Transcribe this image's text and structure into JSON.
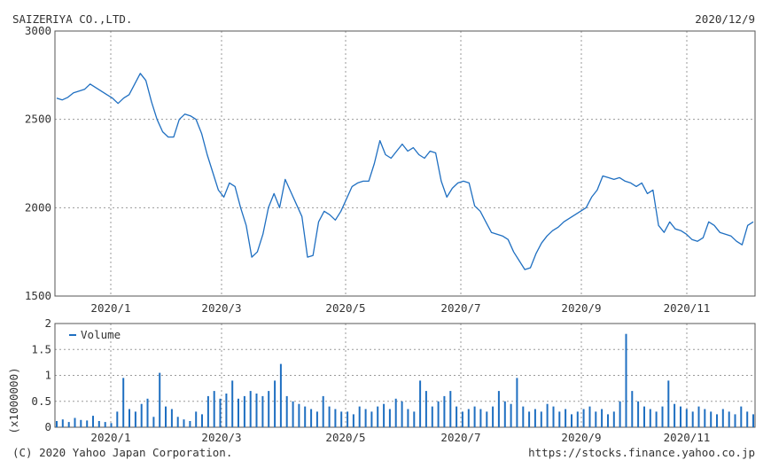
{
  "header": {
    "company": "SAIZERIYA CO.,LTD.",
    "date": "2020/12/9"
  },
  "footer": {
    "copyright": "(C) 2020 Yahoo Japan Corporation.",
    "url": "https://stocks.finance.yahoo.co.jp"
  },
  "colors": {
    "line": "#1f6fc1",
    "grid": "#9a9a9a",
    "frame": "#555555",
    "text": "#333333"
  },
  "chart_data": [
    {
      "type": "line",
      "title": "",
      "x_tick_labels": [
        "2020/1",
        "2020/3",
        "2020/5",
        "2020/7",
        "2020/9",
        "2020/11"
      ],
      "y_tick_labels": [
        "3000",
        "2500",
        "2000",
        "1500"
      ],
      "ylim": [
        1500,
        3000
      ],
      "grid": true,
      "series": [
        {
          "values": [
            2620,
            2610,
            2625,
            2650,
            2660,
            2670,
            2700,
            2680,
            2660,
            2640,
            2620,
            2590,
            2620,
            2640,
            2700,
            2760,
            2720,
            2600,
            2500,
            2430,
            2400,
            2400,
            2500,
            2530,
            2520,
            2500,
            2420,
            2300,
            2200,
            2100,
            2060,
            2140,
            2120,
            2000,
            1900,
            1720,
            1750,
            1850,
            2000,
            2080,
            2000,
            2160,
            2090,
            2020,
            1950,
            1720,
            1730,
            1920,
            1980,
            1960,
            1930,
            1980,
            2050,
            2120,
            2140,
            2150,
            2150,
            2250,
            2380,
            2300,
            2280,
            2320,
            2360,
            2320,
            2340,
            2300,
            2280,
            2320,
            2310,
            2150,
            2060,
            2110,
            2140,
            2150,
            2140,
            2010,
            1980,
            1920,
            1860,
            1850,
            1840,
            1820,
            1750,
            1700,
            1650,
            1660,
            1740,
            1800,
            1840,
            1870,
            1890,
            1920,
            1940,
            1960,
            1980,
            2000,
            2060,
            2100,
            2180,
            2170,
            2160,
            2170,
            2150,
            2140,
            2120,
            2140,
            2080,
            2100,
            1900,
            1860,
            1920,
            1880,
            1870,
            1850,
            1820,
            1810,
            1830,
            1920,
            1900,
            1860,
            1850,
            1840,
            1810,
            1790,
            1900,
            1920
          ],
          "start": "2019-12-02",
          "end": "2020-12-09"
        }
      ]
    },
    {
      "type": "bar",
      "legend": [
        "Volume"
      ],
      "legend_position": "top-left",
      "ylabel": "(x1000000)",
      "y_tick_labels": [
        "2",
        "1.5",
        "1",
        "0.5",
        "0"
      ],
      "ylim": [
        0,
        2
      ],
      "grid": true,
      "series": [
        {
          "name": "Volume",
          "values": [
            0.12,
            0.15,
            0.1,
            0.18,
            0.14,
            0.13,
            0.22,
            0.12,
            0.1,
            0.08,
            0.3,
            0.95,
            0.35,
            0.3,
            0.45,
            0.55,
            0.2,
            1.05,
            0.4,
            0.35,
            0.2,
            0.15,
            0.12,
            0.3,
            0.25,
            0.6,
            0.7,
            0.55,
            0.65,
            0.9,
            0.55,
            0.6,
            0.7,
            0.65,
            0.6,
            0.7,
            0.9,
            1.22,
            0.6,
            0.5,
            0.45,
            0.4,
            0.35,
            0.3,
            0.6,
            0.4,
            0.35,
            0.3,
            0.3,
            0.25,
            0.4,
            0.35,
            0.3,
            0.4,
            0.45,
            0.35,
            0.55,
            0.5,
            0.35,
            0.3,
            0.9,
            0.7,
            0.4,
            0.5,
            0.6,
            0.7,
            0.4,
            0.3,
            0.35,
            0.4,
            0.35,
            0.3,
            0.4,
            0.7,
            0.5,
            0.45,
            0.95,
            0.4,
            0.3,
            0.35,
            0.3,
            0.45,
            0.4,
            0.3,
            0.35,
            0.25,
            0.3,
            0.35,
            0.4,
            0.3,
            0.35,
            0.25,
            0.3,
            0.5,
            1.8,
            0.7,
            0.5,
            0.4,
            0.35,
            0.3,
            0.4,
            0.9,
            0.45,
            0.4,
            0.35,
            0.3,
            0.4,
            0.35,
            0.3,
            0.25,
            0.35,
            0.3,
            0.25,
            0.4,
            0.3,
            0.25
          ]
        }
      ]
    }
  ]
}
